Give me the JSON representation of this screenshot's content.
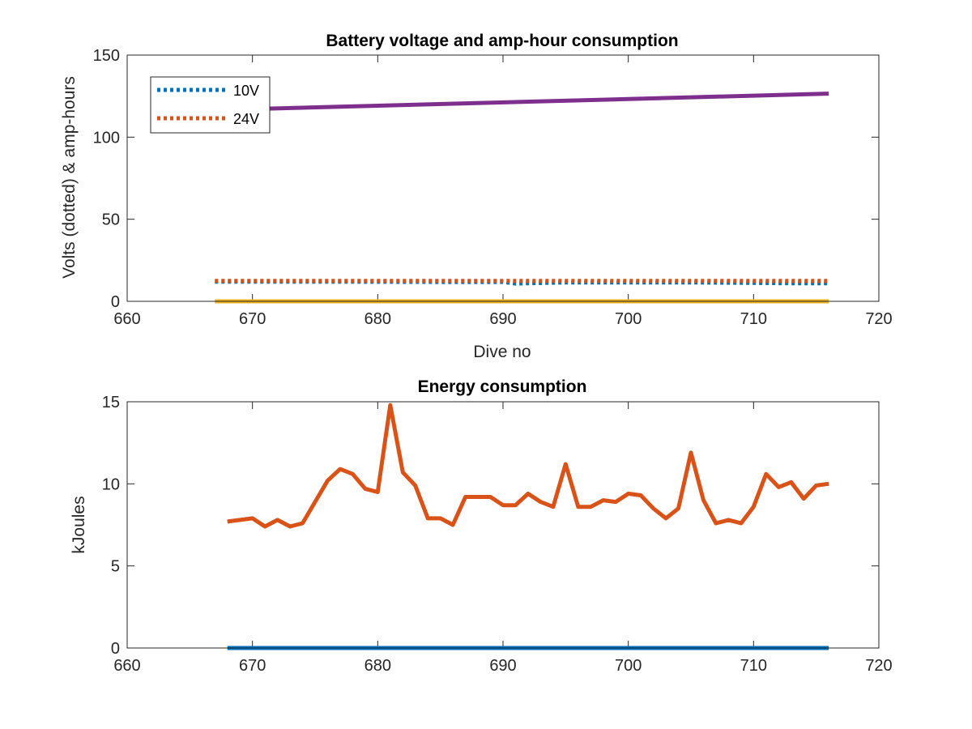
{
  "chart_data": [
    {
      "type": "line",
      "title": "Battery voltage and amp-hour consumption",
      "xlabel": "Dive no",
      "ylabel": "Volts (dotted) & amp-hours",
      "xlim": [
        660,
        720
      ],
      "ylim": [
        0,
        150
      ],
      "xticks": [
        "660",
        "670",
        "680",
        "690",
        "700",
        "710",
        "720"
      ],
      "yticks": [
        "0",
        "50",
        "100",
        "150"
      ],
      "legend_position": "top-left",
      "legend": [
        {
          "label": "10V",
          "color": "#0072BD",
          "style": "dotted"
        },
        {
          "label": "24V",
          "color": "#D95319",
          "style": "dotted"
        }
      ],
      "series": [
        {
          "name": "10V",
          "color": "#0072BD",
          "style": "dotted",
          "x": [
            667,
            676,
            685,
            690,
            691,
            695,
            700,
            705,
            710,
            713,
            716
          ],
          "y": [
            12,
            12,
            11.8,
            11.8,
            10.8,
            11.5,
            11.5,
            11.5,
            11.2,
            11,
            11
          ]
        },
        {
          "name": "24V",
          "color": "#D95319",
          "style": "dotted",
          "x": [
            667,
            716
          ],
          "y": [
            12.5,
            12.5
          ]
        },
        {
          "color": "#7E2F8E",
          "style": "solid",
          "x": [
            667,
            716
          ],
          "y": [
            116.5,
            126.5
          ]
        },
        {
          "color": "#EDB120",
          "style": "solid",
          "x": [
            667,
            716
          ],
          "y": [
            0,
            0
          ]
        }
      ]
    },
    {
      "type": "line",
      "title": "Energy consumption",
      "xlabel": "",
      "ylabel": "kJoules",
      "xlim": [
        660,
        720
      ],
      "ylim": [
        0,
        15
      ],
      "xticks": [
        "660",
        "670",
        "680",
        "690",
        "700",
        "710",
        "720"
      ],
      "yticks": [
        "0",
        "5",
        "10",
        "15"
      ],
      "series": [
        {
          "color": "#D95319",
          "style": "solid",
          "x": [
            668,
            669,
            670,
            671,
            672,
            673,
            674,
            675,
            676,
            677,
            678,
            679,
            680,
            681,
            682,
            683,
            684,
            685,
            686,
            687,
            688,
            689,
            690,
            691,
            692,
            693,
            694,
            695,
            696,
            697,
            698,
            699,
            700,
            701,
            702,
            703,
            704,
            705,
            706,
            707,
            708,
            709,
            710,
            711,
            712,
            713,
            714,
            715,
            716
          ],
          "y": [
            7.7,
            7.8,
            7.9,
            7.4,
            7.8,
            7.4,
            7.6,
            8.9,
            10.2,
            10.9,
            10.6,
            9.7,
            9.5,
            14.8,
            10.7,
            9.9,
            7.9,
            7.9,
            7.5,
            9.2,
            9.2,
            9.2,
            8.7,
            8.7,
            9.4,
            8.9,
            8.6,
            11.2,
            8.6,
            8.6,
            9.0,
            8.9,
            9.4,
            9.3,
            8.5,
            7.9,
            8.5,
            11.9,
            9.0,
            7.6,
            7.8,
            7.6,
            8.6,
            10.6,
            9.8,
            10.1,
            9.1,
            9.9,
            10.0
          ]
        },
        {
          "color": "#0072BD",
          "style": "solid",
          "x": [
            668,
            716
          ],
          "y": [
            0,
            0
          ]
        }
      ]
    }
  ]
}
